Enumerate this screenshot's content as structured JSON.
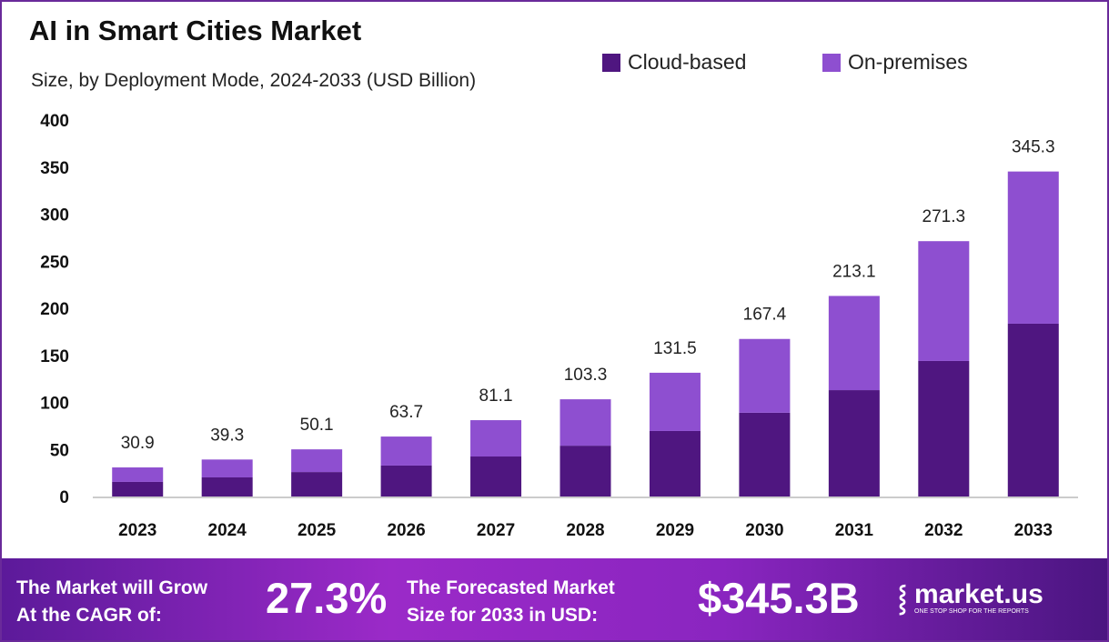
{
  "colors": {
    "cloud": "#4f1680",
    "onprem": "#8e4fd0",
    "footer": "#8a25c0"
  },
  "chart_data": {
    "type": "bar",
    "stacked": true,
    "title": "AI in Smart Cities Market",
    "subtitle": "Size, by Deployment Mode, 2024-2033 (USD Billion)",
    "xlabel": "",
    "ylabel": "",
    "ylim": [
      0,
      400
    ],
    "yticks": [
      "0",
      "50",
      "100",
      "150",
      "200",
      "250",
      "300",
      "350",
      "400"
    ],
    "grid": false,
    "legend_position": "top-right",
    "categories": [
      "2023",
      "2024",
      "2025",
      "2026",
      "2027",
      "2028",
      "2029",
      "2030",
      "2031",
      "2032",
      "2033"
    ],
    "series": [
      {
        "name": "Cloud-based",
        "values": [
          15.5,
          20.3,
          26,
          32.9,
          42.5,
          54,
          69.6,
          89,
          113,
          144,
          183.6
        ]
      },
      {
        "name": "On-premises",
        "values": [
          15.4,
          19.0,
          24.1,
          30.8,
          38.6,
          49.3,
          61.9,
          78.4,
          100.1,
          127.3,
          161.7
        ]
      }
    ],
    "totals": [
      "30.9",
      "39.3",
      "50.1",
      "63.7",
      "81.1",
      "103.3",
      "131.5",
      "167.4",
      "213.1",
      "271.3",
      "345.3"
    ]
  },
  "footer": {
    "cagr_label_1": "The Market will Grow",
    "cagr_label_2": "At the CAGR of:",
    "cagr_value": "27.3%",
    "forecast_label_1": "The Forecasted Market",
    "forecast_label_2": "Size for 2033 in USD:",
    "forecast_value": "$345.3B",
    "logo_name": "market.us",
    "logo_tagline": "ONE STOP SHOP FOR THE REPORTS"
  }
}
